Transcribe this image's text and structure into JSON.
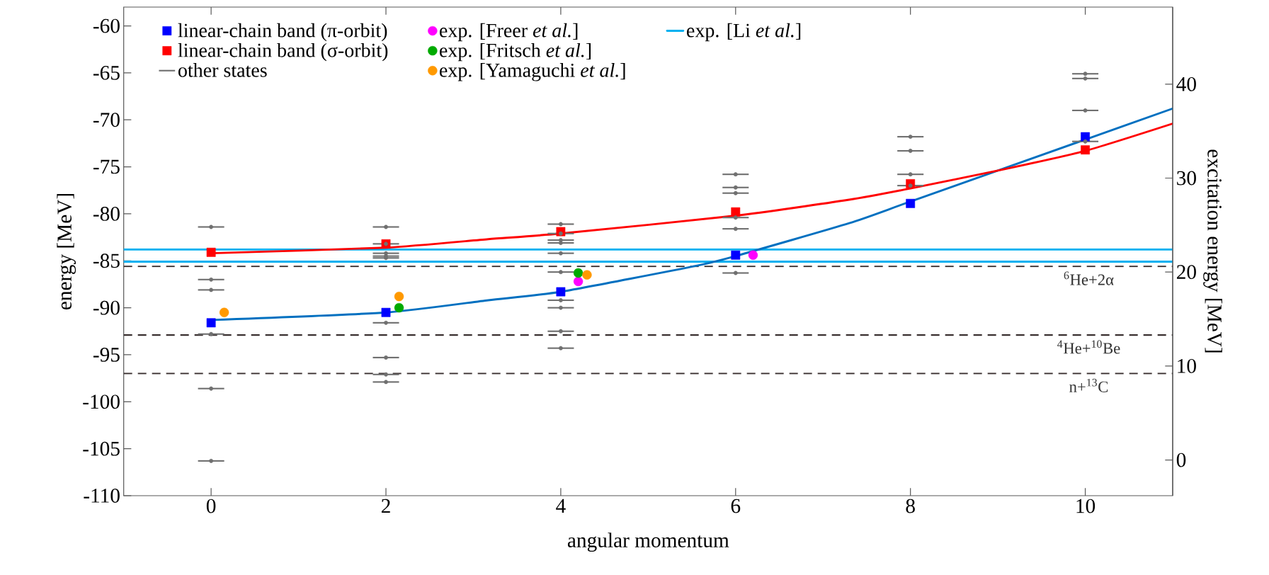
{
  "chart_data": {
    "type": "scatter",
    "xlabel": "angular momentum",
    "ylabel": "energy [MeV]",
    "y2label": "excitation energy [MeV]",
    "xlim": [
      -1,
      11
    ],
    "xticks": [
      0,
      2,
      4,
      6,
      8,
      10
    ],
    "ylim": [
      -110,
      -58
    ],
    "yticks": [
      -110,
      -105,
      -100,
      -95,
      -90,
      -85,
      -80,
      -75,
      -70,
      -65,
      -60
    ],
    "y2lim": [
      -3.8,
      48.2
    ],
    "y2ticks": [
      0,
      10,
      20,
      30,
      40
    ],
    "legend": "top left",
    "series": [
      {
        "name": "linear-chain band (π-orbit)",
        "marker": "square",
        "color": "#0000ff",
        "x": [
          0,
          2,
          4,
          6,
          8,
          10
        ],
        "values": [
          -91.6,
          -90.5,
          -88.3,
          -84.4,
          -78.9,
          -71.8
        ]
      },
      {
        "name": "linear-chain band (σ-orbit)",
        "marker": "square",
        "color": "#ff0000",
        "x": [
          0,
          2,
          4,
          6,
          8,
          10
        ],
        "values": [
          -84.1,
          -83.2,
          -81.9,
          -79.8,
          -76.8,
          -73.2
        ]
      },
      {
        "name": "other states",
        "marker": "none",
        "color": "#707070",
        "xerrors": [
          0.15,
          0.15,
          0.15,
          0.15,
          0.15,
          0.15,
          0.15,
          0.15,
          0.15,
          0.15,
          0.15,
          0.15,
          0.15,
          0.15,
          0.15,
          0.15,
          0.15,
          0.15,
          0.15,
          0.15,
          0.15,
          0.15,
          0.15,
          0.15,
          0.15,
          0.15,
          0.15,
          0.15,
          0.15,
          0.15,
          0.15,
          0.15,
          0.15,
          0.15,
          0.15,
          0.15,
          0.15,
          0.15,
          0.15
        ],
        "x": [
          0,
          0,
          0,
          0,
          0,
          0,
          2,
          2,
          2,
          2,
          2,
          2,
          2,
          2,
          2,
          4,
          4,
          4,
          4,
          4,
          4,
          4,
          4,
          4,
          4,
          6,
          6,
          6,
          6,
          6,
          6,
          8,
          8,
          8,
          8,
          10,
          10,
          10,
          10
        ],
        "values": [
          -81.4,
          -87.0,
          -88.1,
          -92.8,
          -98.6,
          -106.3,
          -81.4,
          -83.2,
          -84.2,
          -84.5,
          -84.7,
          -91.6,
          -95.3,
          -97.1,
          -97.9,
          -81.1,
          -82.1,
          -82.8,
          -83.1,
          -84.2,
          -86.2,
          -89.2,
          -90.0,
          -92.5,
          -94.3,
          -75.8,
          -77.2,
          -77.8,
          -80.4,
          -81.6,
          -86.3,
          -71.8,
          -73.3,
          -75.8,
          -77.0,
          -65.1,
          -65.6,
          -69.0,
          -72.3
        ]
      },
      {
        "name": "exp. [Freer *et al.*]",
        "marker": "circle",
        "color": "#ff00ff",
        "x": [
          4.2,
          6.2
        ],
        "values": [
          -87.2,
          -84.4
        ]
      },
      {
        "name": "exp. [Fritsch *et al.*]",
        "marker": "circle",
        "color": "#00aa00",
        "x": [
          2.15,
          4.2
        ],
        "values": [
          -90.0,
          -86.3
        ]
      },
      {
        "name": "exp. [Yamaguchi *et al.*]",
        "marker": "circle",
        "color": "#ff9900",
        "x": [
          0.15,
          2.15,
          4.3
        ],
        "values": [
          -90.5,
          -88.8,
          -86.5
        ]
      },
      {
        "name": "exp. [Li *et al.*]",
        "type": "line",
        "marker": "none",
        "color": "#00b0f0",
        "x": [
          -1,
          11
        ],
        "values": [
          -83.8,
          -83.8
        ]
      },
      {
        "type": "line",
        "marker": "none",
        "color": "#00b0f0",
        "x": [
          -1,
          11
        ],
        "values": [
          -85.1,
          -85.1
        ]
      },
      {
        "type": "line",
        "marker": "none",
        "color": "#0070c0",
        "x": [
          0,
          2,
          3.17,
          4,
          5.57,
          6,
          7.3,
          8,
          10,
          11
        ],
        "values": [
          -91.3,
          -90.5,
          -89.2,
          -88.3,
          -85.5,
          -84.5,
          -81.0,
          -78.7,
          -72.1,
          -68.8
        ]
      },
      {
        "type": "line",
        "marker": "none",
        "color": "#ff0000",
        "x": [
          0,
          2,
          3.17,
          4,
          6,
          7.3,
          8,
          9,
          10,
          11
        ],
        "values": [
          -84.2,
          -83.6,
          -82.7,
          -82.1,
          -80.2,
          -78.5,
          -77.3,
          -75.4,
          -73.3,
          -70.4
        ]
      }
    ],
    "ref_lines": [
      {
        "axis": "y",
        "value": -85.6,
        "label": "$^{6}$He+2α",
        "color": "#3a3030",
        "line_style": "dashed"
      },
      {
        "axis": "y",
        "value": -92.9,
        "label": "$^{4}$He+$^{10}$Be",
        "color": "#3a3030",
        "line_style": "dashed"
      },
      {
        "axis": "y",
        "value": -97.0,
        "label": "n+$^{13}$C",
        "color": "#3a3030",
        "line_style": "dashed"
      }
    ]
  }
}
